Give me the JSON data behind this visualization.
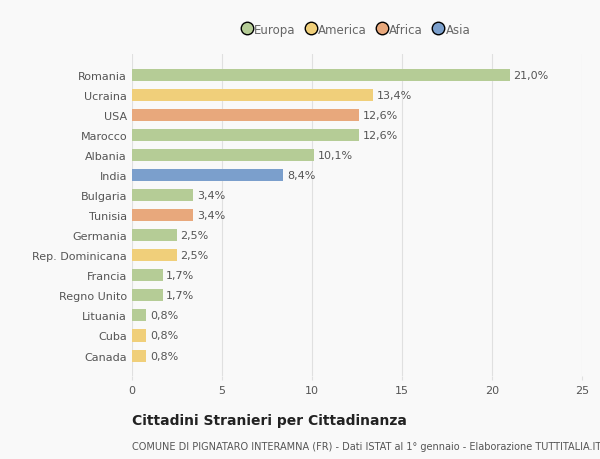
{
  "countries": [
    "Romania",
    "Ucraina",
    "USA",
    "Marocco",
    "Albania",
    "India",
    "Bulgaria",
    "Tunisia",
    "Germania",
    "Rep. Dominicana",
    "Francia",
    "Regno Unito",
    "Lituania",
    "Cuba",
    "Canada"
  ],
  "values": [
    21.0,
    13.4,
    12.6,
    12.6,
    10.1,
    8.4,
    3.4,
    3.4,
    2.5,
    2.5,
    1.7,
    1.7,
    0.8,
    0.8,
    0.8
  ],
  "labels": [
    "21,0%",
    "13,4%",
    "12,6%",
    "12,6%",
    "10,1%",
    "8,4%",
    "3,4%",
    "3,4%",
    "2,5%",
    "2,5%",
    "1,7%",
    "1,7%",
    "0,8%",
    "0,8%",
    "0,8%"
  ],
  "categories": [
    "Europa",
    "America",
    "Africa",
    "Asia"
  ],
  "bar_colors": [
    "#b5cc96",
    "#f0cf7a",
    "#e8a87c",
    "#b5cc96",
    "#b5cc96",
    "#7b9fcc",
    "#b5cc96",
    "#e8a87c",
    "#b5cc96",
    "#f0cf7a",
    "#b5cc96",
    "#b5cc96",
    "#b5cc96",
    "#f0cf7a",
    "#f0cf7a"
  ],
  "legend_colors": [
    "#b5cc96",
    "#f0cf7a",
    "#e8a87c",
    "#7b9fcc"
  ],
  "title": "Cittadini Stranieri per Cittadinanza",
  "subtitle": "COMUNE DI PIGNATARO INTERAMNA (FR) - Dati ISTAT al 1° gennaio - Elaborazione TUTTITALIA.IT",
  "xlim": [
    0,
    25
  ],
  "xticks": [
    0,
    5,
    10,
    15,
    20,
    25
  ],
  "bg_color": "#f9f9f9",
  "grid_color": "#e0e0e0",
  "label_fontsize": 8,
  "tick_fontsize": 8,
  "title_fontsize": 10,
  "subtitle_fontsize": 7
}
